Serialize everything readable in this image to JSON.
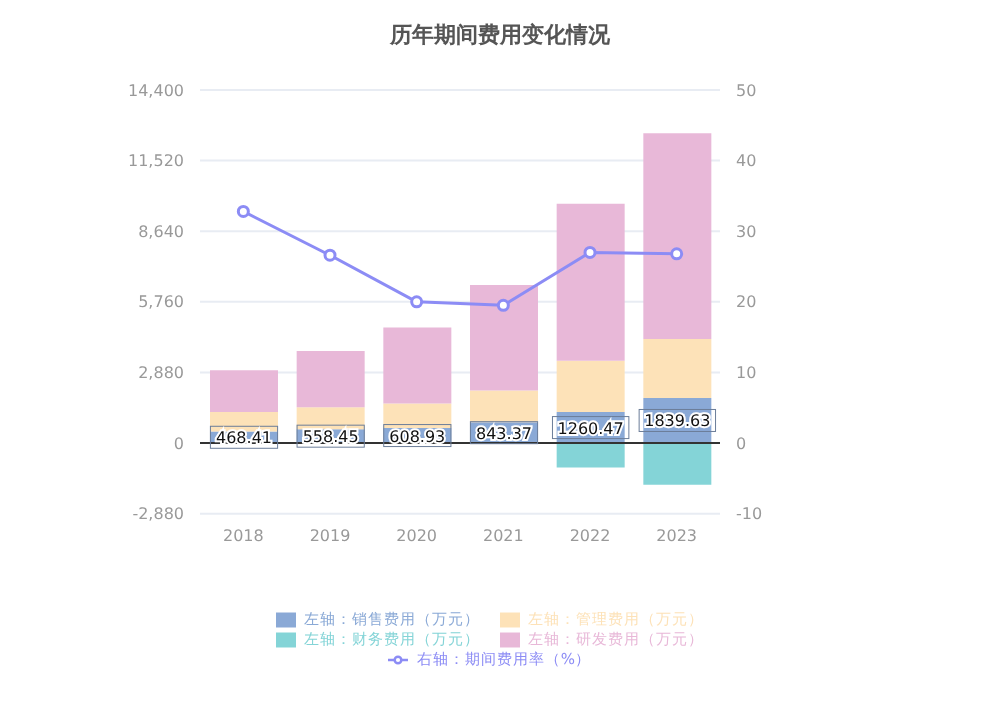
{
  "chart_data": {
    "type": "bar",
    "title": "历年期间费用变化情况",
    "categories": [
      "2018",
      "2019",
      "2020",
      "2021",
      "2022",
      "2023"
    ],
    "stacked": true,
    "series": [
      {
        "name": "左轴：销售费用（万元）",
        "color": "#8aa9d6",
        "values": [
          468.41,
          558.45,
          608.93,
          843.37,
          1260.47,
          1839.63
        ],
        "value_labels": [
          "468.41",
          "558.45",
          "608.93",
          "843.37",
          "1260.47",
          "1839.63"
        ]
      },
      {
        "name": "左轴：管理费用（万元）",
        "color": "#fde2b8",
        "values": [
          800,
          900,
          1000,
          1300,
          2100,
          2400
        ]
      },
      {
        "name": "左轴：财务费用（万元）",
        "color": "#84d4d7",
        "values": [
          0,
          0,
          0,
          0,
          -1000,
          -1700
        ]
      },
      {
        "name": "左轴：研发费用（万元）",
        "color": "#e8b8d8",
        "values": [
          1700,
          2300,
          3100,
          4300,
          6400,
          8400
        ]
      },
      {
        "name": "右轴：期间费用率（%）",
        "type": "line",
        "axis": "y2",
        "color": "#8c8cf5",
        "marker": "circle",
        "values": [
          32.8,
          26.6,
          20.0,
          19.5,
          27.0,
          26.8
        ]
      }
    ],
    "ylim": [
      -2880,
      14400
    ],
    "yticks": [
      {
        "value": -2880,
        "label": "-2,880"
      },
      0,
      {
        "value": 2880,
        "label": "2,880"
      },
      {
        "value": 5760,
        "label": "5,760"
      },
      {
        "value": 8640,
        "label": "8,640"
      },
      {
        "value": 11520,
        "label": "11,520"
      },
      {
        "value": 14400,
        "label": "14,400"
      }
    ],
    "y2lim": [
      -10,
      50
    ],
    "y2ticks": [
      -10,
      0,
      10,
      20,
      30,
      40,
      50
    ],
    "grid": "y",
    "legend": "bottom"
  }
}
